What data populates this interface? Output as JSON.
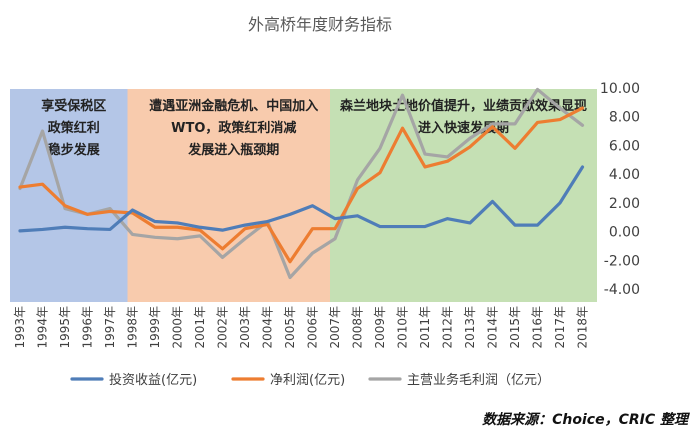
{
  "chart_data": {
    "type": "line",
    "title": "外高桥年度财务指标",
    "categories": [
      "1993年",
      "1994年",
      "1995年",
      "1996年",
      "1997年",
      "1998年",
      "1999年",
      "2000年",
      "2001年",
      "2002年",
      "2003年",
      "2004年",
      "2005年",
      "2006年",
      "2007年",
      "2008年",
      "2009年",
      "2010年",
      "2011年",
      "2012年",
      "2013年",
      "2014年",
      "2015年",
      "2016年",
      "2017年",
      "2018年"
    ],
    "ylim": [
      -4,
      10
    ],
    "yticks": [
      "-4.00",
      "-2.00",
      "0.00",
      "2.00",
      "4.00",
      "6.00",
      "8.00",
      "10.00"
    ],
    "grid": false,
    "legend_position": "bottom",
    "series": [
      {
        "name": "投资收益(亿元)",
        "color": "#4F7DB8",
        "values": [
          0.05,
          0.15,
          0.3,
          0.2,
          0.15,
          1.5,
          0.7,
          0.6,
          0.3,
          0.1,
          0.45,
          0.7,
          1.2,
          1.8,
          0.9,
          1.1,
          0.35,
          0.35,
          0.35,
          0.9,
          0.6,
          2.1,
          0.45,
          0.45,
          2.0,
          4.5
        ]
      },
      {
        "name": "净利润(亿元)",
        "color": "#ED7D31",
        "values": [
          3.1,
          3.3,
          1.8,
          1.2,
          1.4,
          1.3,
          0.3,
          0.3,
          0.1,
          -1.2,
          0.2,
          0.5,
          -2.1,
          0.2,
          0.2,
          3.0,
          4.1,
          7.2,
          4.5,
          4.9,
          5.9,
          7.3,
          5.8,
          7.6,
          7.8,
          8.6
        ]
      },
      {
        "name": "主营业务毛利润（亿元）",
        "color": "#A5A5A5",
        "values": [
          3.0,
          7.0,
          1.6,
          1.2,
          1.6,
          -0.2,
          -0.4,
          -0.5,
          -0.3,
          -1.8,
          -0.5,
          0.7,
          -3.2,
          -1.5,
          -0.5,
          3.6,
          5.8,
          9.5,
          5.4,
          5.2,
          6.5,
          7.5,
          7.5,
          9.9,
          8.6,
          7.4
        ]
      }
    ],
    "periods": [
      {
        "from": 0,
        "to": 5,
        "color": "#B4C6E7",
        "lines": [
          "享受保税区",
          "政策红利",
          "稳步发展"
        ]
      },
      {
        "from": 5,
        "to": 14,
        "color": "#F8CBAD",
        "lines": [
          "遭遇亚洲金融危机、中国加入",
          "WTO，政策红利消减",
          "发展进入瓶颈期"
        ]
      },
      {
        "from": 14,
        "to": 25,
        "color": "#C5E0B4",
        "lines": [
          "森兰地块土地价值提升，业绩贡献效果显现",
          "进入快速发展期"
        ]
      }
    ]
  },
  "source_note": "数据来源：Choice，CRIC 整理"
}
